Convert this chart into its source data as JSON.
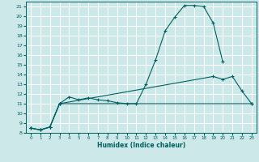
{
  "xlabel": "Humidex (Indice chaleur)",
  "background_color": "#cce8e8",
  "grid_color": "#ffffff",
  "line_color": "#006060",
  "xlim": [
    -0.5,
    23.5
  ],
  "ylim": [
    8,
    21.5
  ],
  "xticks": [
    0,
    1,
    2,
    3,
    4,
    5,
    6,
    7,
    8,
    9,
    10,
    11,
    12,
    13,
    14,
    15,
    16,
    17,
    18,
    19,
    20,
    21,
    22,
    23
  ],
  "yticks": [
    8,
    9,
    10,
    11,
    12,
    13,
    14,
    15,
    16,
    17,
    18,
    19,
    20,
    21
  ],
  "series": [
    {
      "x": [
        0,
        1,
        2,
        3,
        4,
        5,
        6,
        7,
        8,
        9,
        10,
        11,
        12,
        13,
        14,
        15,
        16,
        17,
        18,
        19,
        20
      ],
      "y": [
        8.5,
        8.3,
        8.6,
        11.0,
        11.7,
        11.4,
        11.6,
        11.4,
        11.3,
        11.1,
        11.0,
        11.0,
        13.0,
        15.5,
        18.5,
        19.9,
        21.1,
        21.1,
        21.0,
        19.3,
        15.3
      ]
    },
    {
      "x": [
        0,
        1,
        2,
        3,
        23
      ],
      "y": [
        8.5,
        8.3,
        8.6,
        11.0,
        11.0
      ]
    },
    {
      "x": [
        0,
        1,
        2,
        3,
        19,
        20,
        21,
        22,
        23
      ],
      "y": [
        8.5,
        8.3,
        8.6,
        11.0,
        13.8,
        13.5,
        13.8,
        12.3,
        11.0
      ]
    }
  ]
}
